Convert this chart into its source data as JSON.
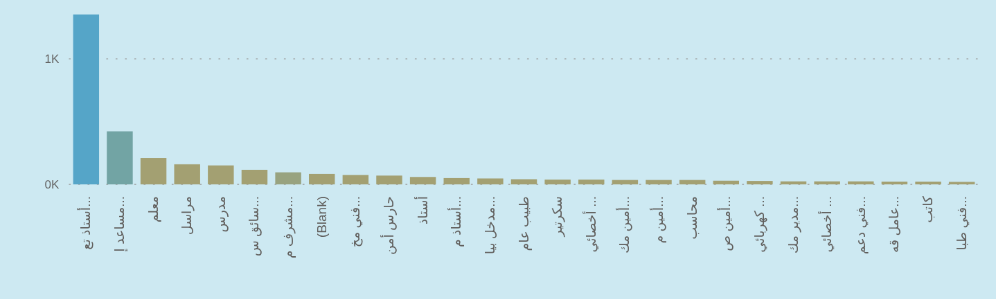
{
  "chart_data": {
    "type": "bar",
    "categories": [
      "أستاذ تع...",
      "مساعد إ...",
      "معلم",
      "مراسل",
      "مدرس",
      "سائق س...",
      "مشرف م...",
      "(Blank)",
      "فني مخ...",
      "حارس أمن",
      "أستاذ",
      "أستاذ م...",
      "مدخل بيا...",
      "طبيب عام",
      "سكرتير",
      "أخصائي ...",
      "أمين مك...",
      "أمين م...",
      "محاسب",
      "أمين ص...",
      "كهربائي ...",
      "مدير مك...",
      "أخصائي ...",
      "فني دعم...",
      "عامل قه...",
      "كاتب",
      "فني طبا..."
    ],
    "values": [
      1354,
      422,
      209,
      160,
      151,
      116,
      96,
      83,
      75,
      70,
      59,
      50,
      47,
      41,
      38,
      38,
      35,
      35,
      35,
      29,
      27,
      24,
      24,
      24,
      22,
      22,
      20
    ],
    "colors": [
      "#55a5c8",
      "#72a4a4",
      "#a3a072",
      "#a3a072",
      "#a3a072",
      "#a3a072",
      "#98a380",
      "#a3a072",
      "#a3a072",
      "#a3a072",
      "#a3a072",
      "#a3a072",
      "#a3a072",
      "#a3a072",
      "#a3a072",
      "#a3a072",
      "#a3a072",
      "#a3a072",
      "#a3a072",
      "#a3a072",
      "#a3a072",
      "#a3a072",
      "#a3a072",
      "#a3a072",
      "#a3a072",
      "#a3a072",
      "#a3a072"
    ],
    "ylim": [
      0,
      1354
    ],
    "yticks": [
      {
        "value": 0,
        "label": "0K"
      },
      {
        "value": 1000,
        "label": "1K"
      }
    ],
    "grid": "y"
  }
}
